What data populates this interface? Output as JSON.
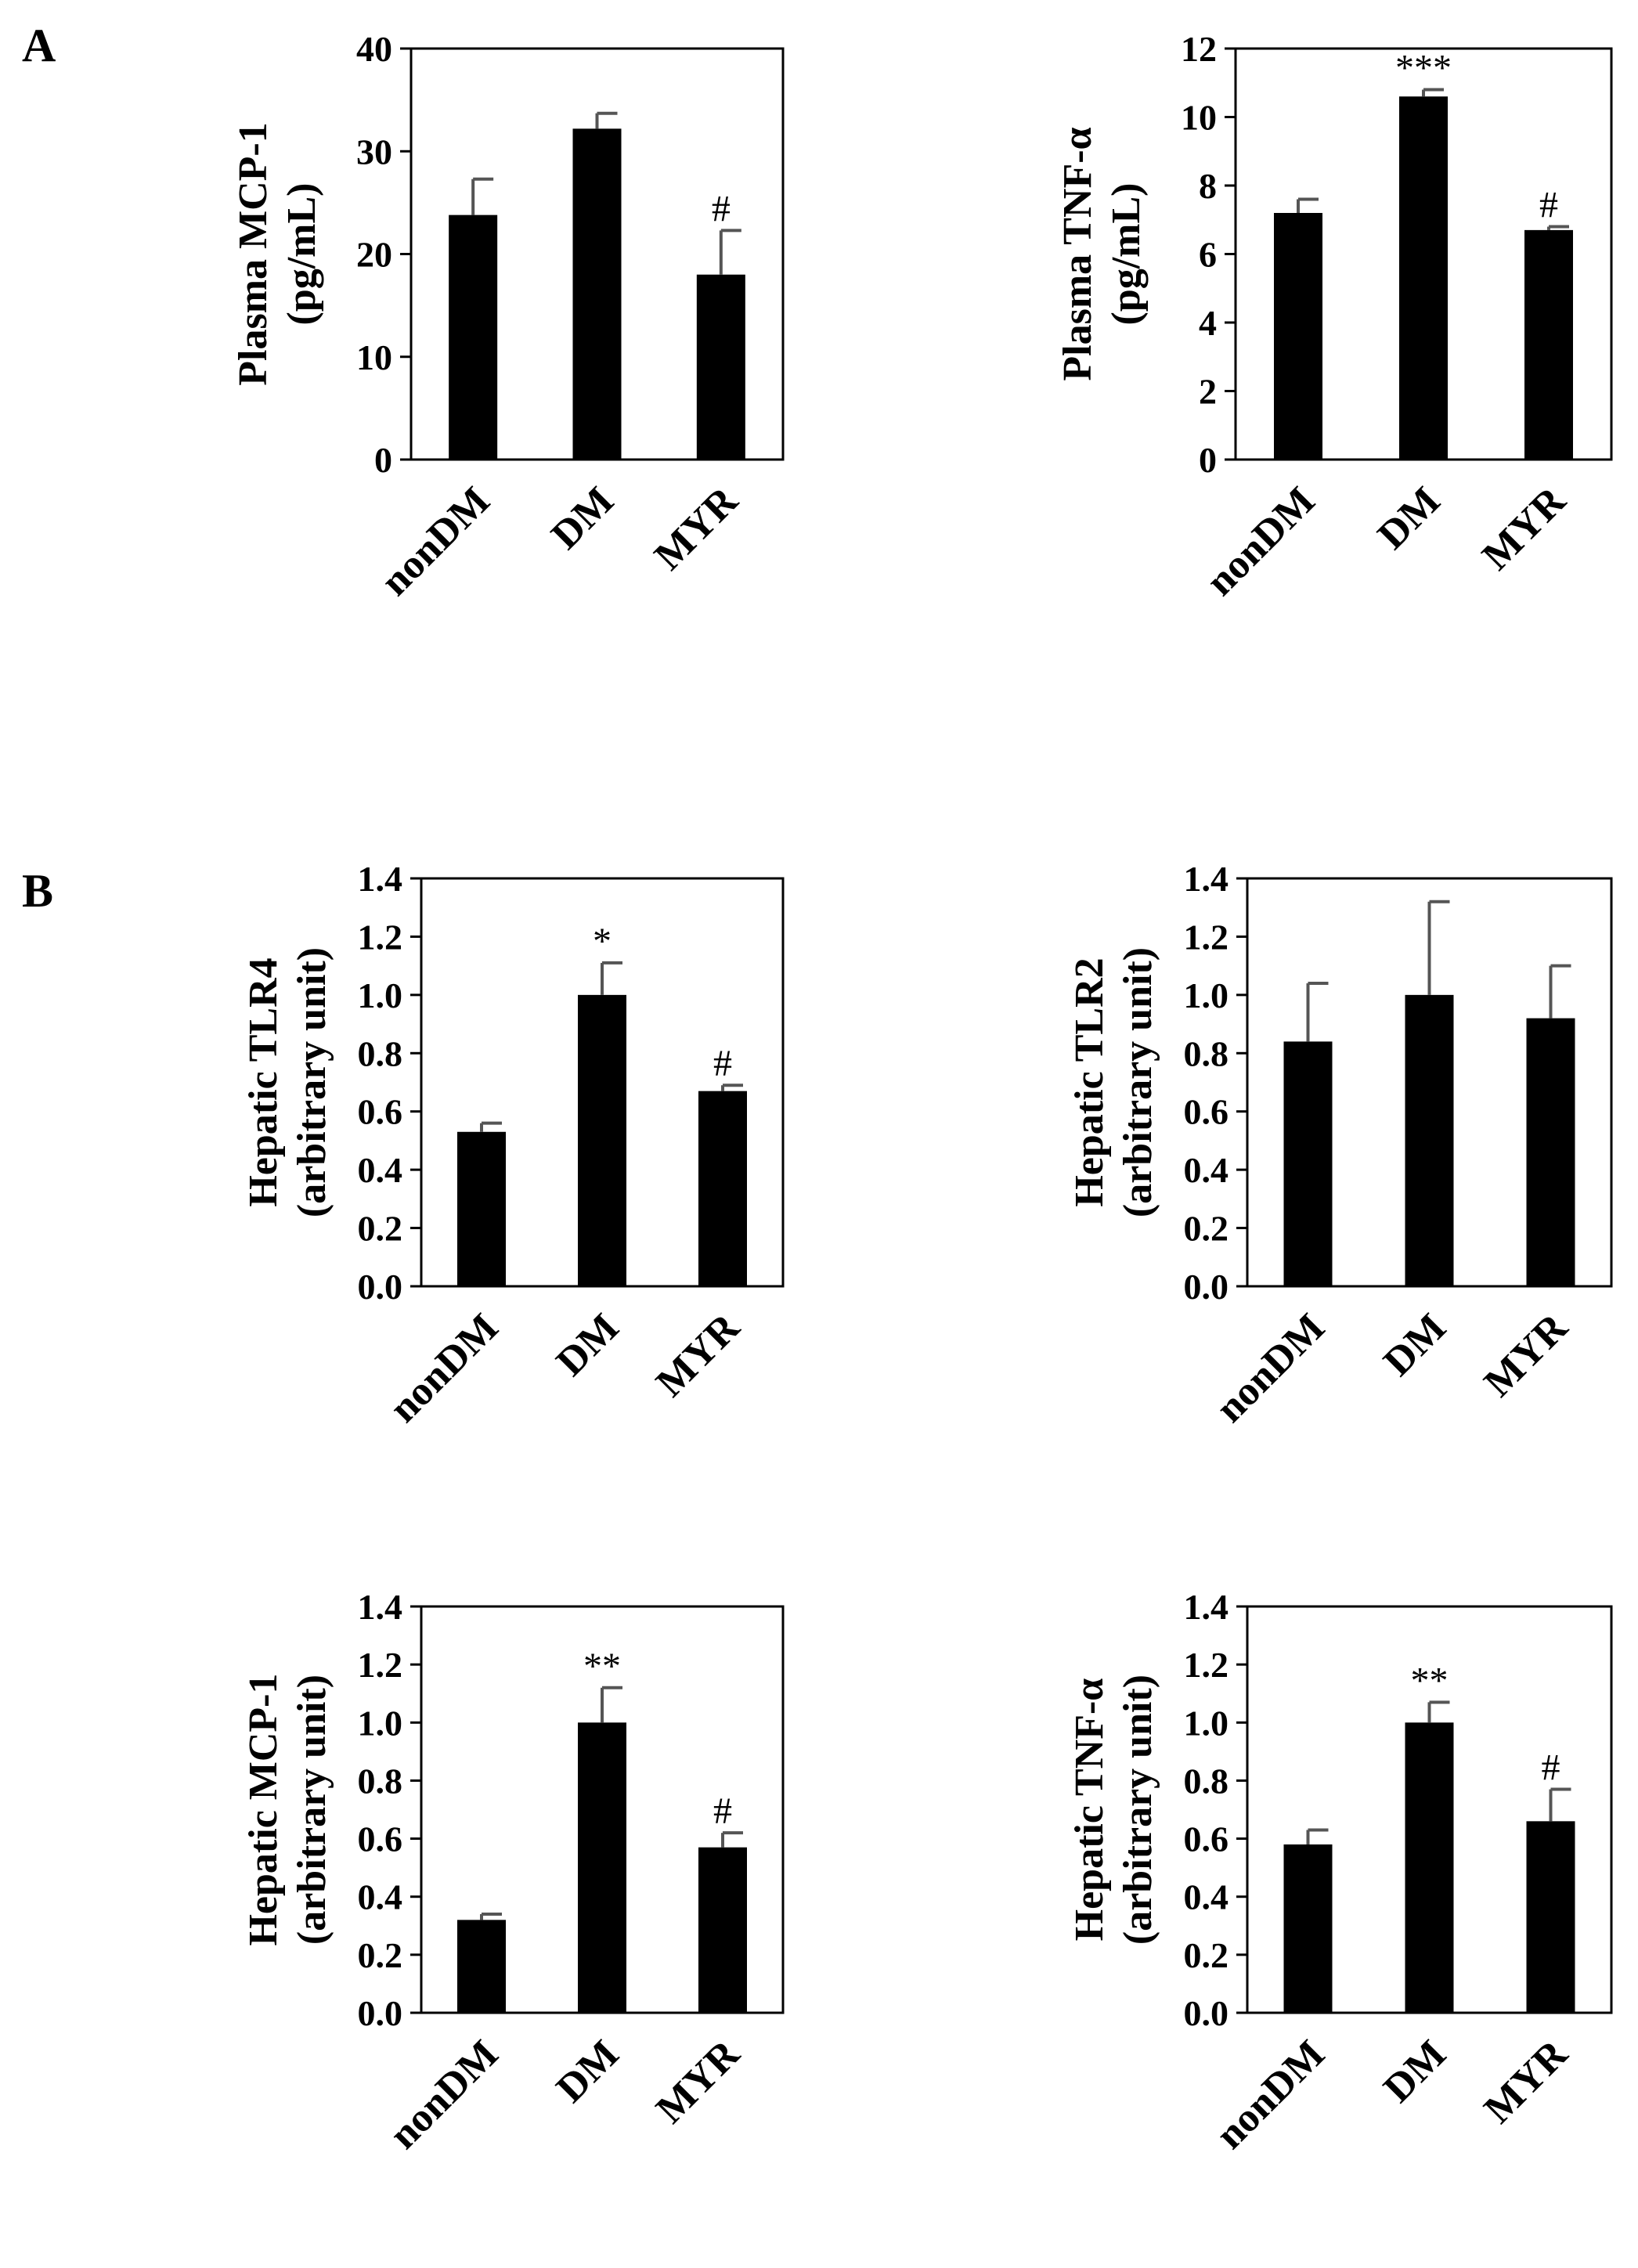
{
  "panels": [
    "A",
    "B"
  ],
  "chart_data": [
    {
      "type": "bar",
      "categories": [
        "nonDM",
        "DM",
        "MYR"
      ],
      "values": [
        23.8,
        32.2,
        18.0
      ],
      "errors": [
        3.5,
        1.5,
        4.3
      ],
      "significance": [
        "",
        "",
        "#"
      ],
      "ylabel_lines": [
        "Plasma MCP-1",
        "(pg/mL)"
      ],
      "ylim": [
        0,
        40
      ],
      "yticks": [
        "0",
        "10",
        "20",
        "30",
        "40"
      ]
    },
    {
      "type": "bar",
      "categories": [
        "nonDM",
        "DM",
        "MYR"
      ],
      "values": [
        7.2,
        10.6,
        6.7
      ],
      "errors": [
        0.4,
        0.2,
        0.1
      ],
      "significance": [
        "",
        "***",
        "#"
      ],
      "ylabel_lines": [
        "Plasma TNF-α",
        "(pg/mL)"
      ],
      "ylim": [
        0,
        12
      ],
      "yticks": [
        "0",
        "2",
        "4",
        "6",
        "8",
        "10",
        "12"
      ]
    },
    {
      "type": "bar",
      "categories": [
        "nonDM",
        "DM",
        "MYR"
      ],
      "values": [
        0.53,
        1.0,
        0.67
      ],
      "errors": [
        0.03,
        0.11,
        0.02
      ],
      "significance": [
        "",
        "*",
        "#"
      ],
      "ylabel_lines": [
        "Hepatic TLR4",
        "(arbitrary unit)"
      ],
      "ylim": [
        0,
        1.4
      ],
      "yticks": [
        "0.0",
        "0.2",
        "0.4",
        "0.6",
        "0.8",
        "1.0",
        "1.2",
        "1.4"
      ]
    },
    {
      "type": "bar",
      "categories": [
        "nonDM",
        "DM",
        "MYR"
      ],
      "values": [
        0.84,
        1.0,
        0.92
      ],
      "errors": [
        0.2,
        0.32,
        0.18
      ],
      "significance": [
        "",
        "",
        ""
      ],
      "ylabel_lines": [
        "Hepatic TLR2",
        "(arbitrary unit)"
      ],
      "ylim": [
        0,
        1.4
      ],
      "yticks": [
        "0.0",
        "0.2",
        "0.4",
        "0.6",
        "0.8",
        "1.0",
        "1.2",
        "1.4"
      ]
    },
    {
      "type": "bar",
      "categories": [
        "nonDM",
        "DM",
        "MYR"
      ],
      "values": [
        0.32,
        1.0,
        0.57
      ],
      "errors": [
        0.02,
        0.12,
        0.05
      ],
      "significance": [
        "",
        "**",
        "#"
      ],
      "ylabel_lines": [
        "Hepatic MCP-1",
        "(arbitrary unit)"
      ],
      "ylim": [
        0,
        1.4
      ],
      "yticks": [
        "0.0",
        "0.2",
        "0.4",
        "0.6",
        "0.8",
        "1.0",
        "1.2",
        "1.4"
      ]
    },
    {
      "type": "bar",
      "categories": [
        "nonDM",
        "DM",
        "MYR"
      ],
      "values": [
        0.58,
        1.0,
        0.66
      ],
      "errors": [
        0.05,
        0.07,
        0.11
      ],
      "significance": [
        "",
        "**",
        "#"
      ],
      "ylabel_lines": [
        "Hepatic TNF-α",
        "(arbitrary unit)"
      ],
      "ylim": [
        0,
        1.4
      ],
      "yticks": [
        "0.0",
        "0.2",
        "0.4",
        "0.6",
        "0.8",
        "1.0",
        "1.2",
        "1.4"
      ]
    }
  ]
}
